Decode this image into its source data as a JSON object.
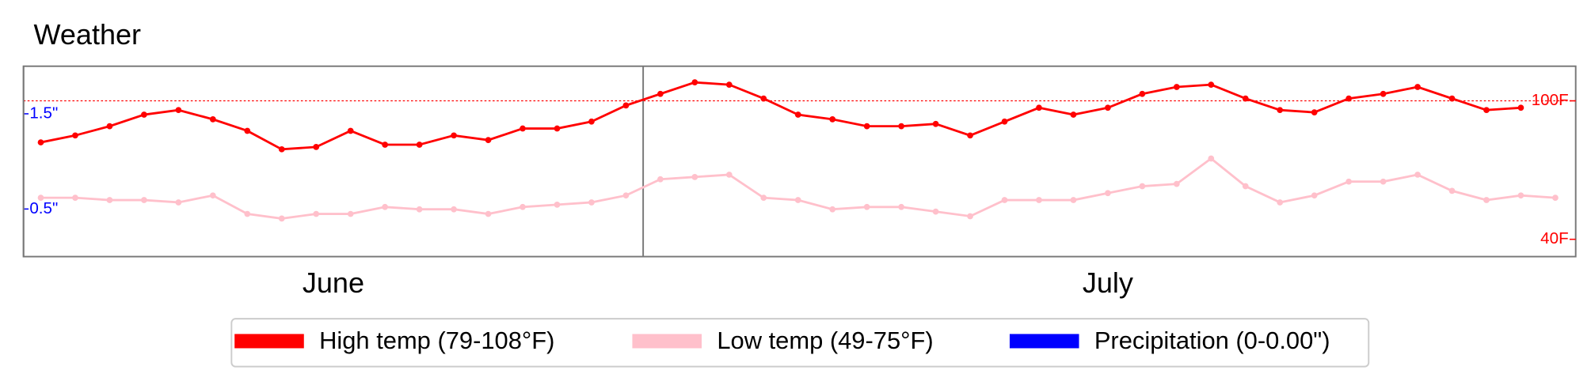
{
  "chart_data": {
    "type": "line",
    "title": "Weather",
    "categories": [
      null,
      null,
      null,
      null,
      null,
      null,
      null,
      null,
      null,
      null,
      null,
      null,
      null,
      null,
      null,
      null,
      null,
      null,
      null,
      null,
      null,
      null,
      null,
      null,
      null,
      null,
      null,
      null,
      null,
      null,
      null,
      null,
      null,
      null,
      null,
      null,
      null,
      null,
      null,
      null,
      null,
      null,
      null,
      null,
      null
    ],
    "months": [
      {
        "name": "June",
        "start": 0
      },
      {
        "name": "July",
        "start": 18
      }
    ],
    "series": [
      {
        "name": "High temp (79-108°F)",
        "color": "#ff0000",
        "axis": "y",
        "values": [
          82,
          85,
          89,
          94,
          96,
          92,
          87,
          79,
          80,
          87,
          81,
          81,
          85,
          83,
          88,
          88,
          91,
          98,
          103,
          108,
          107,
          101,
          94,
          92,
          89,
          89,
          90,
          85,
          91,
          97,
          94,
          97,
          103,
          106,
          107,
          101,
          96,
          95,
          101,
          103,
          106,
          101,
          96,
          97,
          null
        ]
      },
      {
        "name": "Low temp (49-75°F)",
        "color": "#ffc0cb",
        "axis": "y",
        "values": [
          58,
          58,
          57,
          57,
          56,
          59,
          51,
          49,
          51,
          51,
          54,
          53,
          53,
          51,
          54,
          55,
          56,
          59,
          66,
          67,
          68,
          58,
          57,
          53,
          54,
          54,
          52,
          50,
          57,
          57,
          57,
          60,
          63,
          64,
          75,
          63,
          56,
          59,
          65,
          65,
          68,
          61,
          57,
          59,
          58
        ]
      },
      {
        "name": "Precipitation (0-0.00\")",
        "color": "#0000ff",
        "axis": "y2",
        "values": [
          0,
          0,
          0,
          0,
          0,
          0,
          0,
          0,
          0,
          0,
          0,
          0,
          0,
          0,
          0,
          0,
          0,
          0,
          0,
          0,
          0,
          0,
          0,
          0,
          0,
          0,
          0,
          0,
          0,
          0,
          0,
          0,
          0,
          0,
          0,
          0,
          0,
          0,
          0,
          0,
          0,
          0,
          0,
          0,
          0
        ]
      }
    ],
    "ylim": [
      32.5,
      115
    ],
    "yticks": [
      {
        "value": 40,
        "label": "40F"
      },
      {
        "value": 100,
        "label": "100F"
      }
    ],
    "y2lim": [
      0,
      2
    ],
    "y2ticks": [
      {
        "value": 0.5,
        "label": "0.5\""
      },
      {
        "value": 1.5,
        "label": "1.5\""
      }
    ],
    "ref_line": 100
  }
}
